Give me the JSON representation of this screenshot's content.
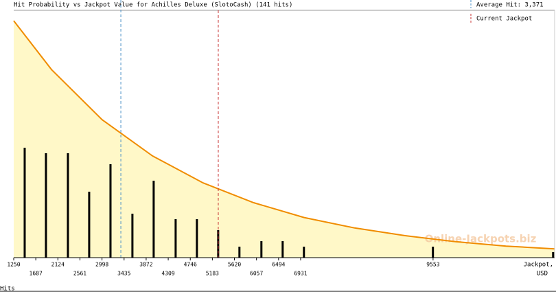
{
  "chart_data": {
    "type": "bar",
    "title": "Hit Probability vs Jackpot Value for Achilles Deluxe (SlotoCash) (141 hits)",
    "x_label": [
      "Jackpot,",
      "USD"
    ],
    "rug_label": "Hits",
    "watermark": "Online-Jackpots.biz",
    "xlim": [
      1250,
      11960
    ],
    "ylim": [
      0,
      45
    ],
    "xticks": [
      1250,
      1687,
      2124,
      2561,
      2998,
      3435,
      3872,
      4309,
      4746,
      5183,
      5620,
      6057,
      6494,
      6931,
      9553
    ],
    "bars": {
      "color": "#000000",
      "x": [
        1467,
        1888,
        2323,
        2744,
        3166,
        3600,
        4021,
        4456,
        4877,
        5298,
        5719,
        6154,
        6575,
        6996,
        9550,
        11930
      ],
      "values": [
        20,
        19,
        19,
        12,
        17,
        8,
        14,
        7,
        7,
        5,
        2,
        3,
        3,
        2,
        2,
        1
      ]
    },
    "curve": {
      "color": "#f08c00",
      "fill": "#fff8c8",
      "x": [
        1250,
        2000,
        3000,
        4000,
        5000,
        6000,
        7000,
        8000,
        9000,
        10000,
        11000,
        11960
      ],
      "values": [
        43.1,
        34.2,
        25.1,
        18.5,
        13.6,
        10.0,
        7.3,
        5.4,
        4.0,
        2.9,
        2.1,
        1.6
      ]
    },
    "average": {
      "label": "Average Hit: 3,371",
      "value": 3371,
      "color": "#4a90c8"
    },
    "current": {
      "label": "Current Jackpot",
      "value": 5300,
      "color": "#c83232"
    }
  }
}
